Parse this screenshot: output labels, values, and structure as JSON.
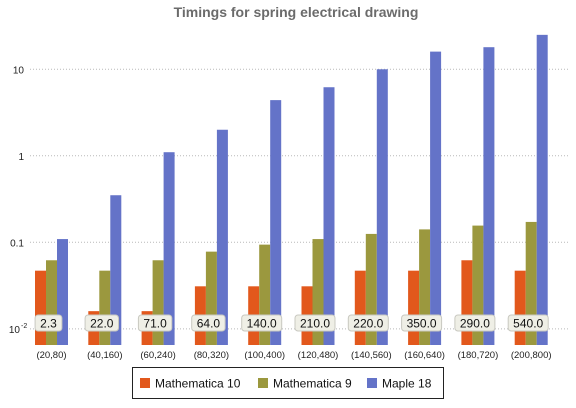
{
  "chart_data": {
    "type": "bar",
    "title": "Timings for spring electrical drawing",
    "xlabel": "",
    "ylabel": "",
    "y_scale": "log",
    "ylim": [
      0.0065,
      30
    ],
    "grid": "horizontal dotted",
    "legend_position": "bottom-center",
    "y_ticks": [
      {
        "value": 0.01,
        "label": "10",
        "exp": "-2"
      },
      {
        "value": 0.1,
        "label": "0.1",
        "exp": ""
      },
      {
        "value": 1,
        "label": "1",
        "exp": ""
      },
      {
        "value": 10,
        "label": "10",
        "exp": ""
      }
    ],
    "categories": [
      "(20,80)",
      "(40,160)",
      "(60,240)",
      "(80,320)",
      "(100,400)",
      "(120,480)",
      "(140,560)",
      "(160,640)",
      "(180,720)",
      "(200,800)"
    ],
    "series": [
      {
        "name": "Mathematica 10",
        "color": "#e2581c",
        "values": [
          0.047,
          0.016,
          0.016,
          0.031,
          0.031,
          0.031,
          0.047,
          0.047,
          0.062,
          0.047
        ]
      },
      {
        "name": "Mathematica 9",
        "color": "#9b983e",
        "values": [
          0.062,
          0.047,
          0.062,
          0.078,
          0.094,
          0.109,
          0.125,
          0.141,
          0.156,
          0.172
        ]
      },
      {
        "name": "Maple 18",
        "color": "#6473c8",
        "values": [
          0.109,
          0.35,
          1.1,
          2.0,
          4.4,
          6.2,
          10.0,
          16.0,
          18.0,
          25.0
        ]
      }
    ],
    "annotations": [
      "2.3",
      "22.0",
      "71.0",
      "64.0",
      "140.0",
      "210.0",
      "220.0",
      "350.0",
      "290.0",
      "540.0"
    ]
  }
}
